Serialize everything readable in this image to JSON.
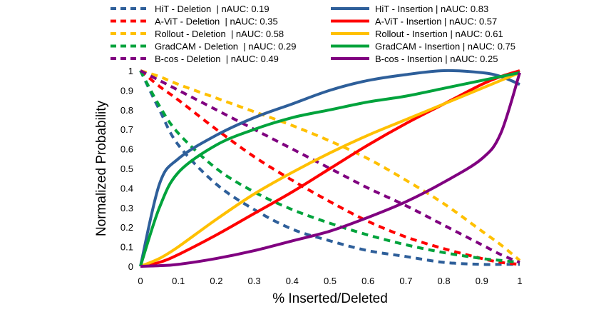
{
  "chart_data": {
    "type": "line",
    "title": "",
    "xlabel": "% Inserted/Deleted",
    "ylabel": "Normalized Probability",
    "xlim": [
      0,
      1
    ],
    "ylim": [
      0,
      1
    ],
    "xticks": [
      "0",
      "0.1",
      "0.2",
      "0.3",
      "0.4",
      "0.5",
      "0.6",
      "0.7",
      "0.8",
      "0.9",
      "1"
    ],
    "yticks": [
      "0",
      "0.1",
      "0.2",
      "0.3",
      "0.4",
      "0.5",
      "0.6",
      "0.7",
      "0.8",
      "0.9",
      "1"
    ],
    "grid": false,
    "legend_placement": "top",
    "x": [
      0,
      0.05,
      0.1,
      0.2,
      0.3,
      0.4,
      0.5,
      0.6,
      0.7,
      0.8,
      0.9,
      0.95,
      1
    ],
    "series": [
      {
        "name": "HiT - Deletion  | nAUC: 0.19",
        "color": "#2e5f9a",
        "dash": true,
        "values": [
          1,
          0.8,
          0.62,
          0.42,
          0.29,
          0.19,
          0.13,
          0.08,
          0.05,
          0.02,
          0.01,
          0.01,
          0.01
        ]
      },
      {
        "name": "A-ViT - Deletion  | nAUC: 0.35",
        "color": "#ff0000",
        "dash": true,
        "values": [
          1,
          0.92,
          0.85,
          0.7,
          0.56,
          0.44,
          0.33,
          0.23,
          0.15,
          0.09,
          0.04,
          0.02,
          0.01
        ]
      },
      {
        "name": "Rollout - Deletion  | nAUC: 0.58",
        "color": "#ffc000",
        "dash": true,
        "values": [
          1,
          0.97,
          0.93,
          0.86,
          0.79,
          0.72,
          0.64,
          0.55,
          0.44,
          0.32,
          0.18,
          0.11,
          0.03
        ]
      },
      {
        "name": "GradCAM - Deletion  | nAUC: 0.29",
        "color": "#00a33c",
        "dash": true,
        "values": [
          1,
          0.82,
          0.68,
          0.5,
          0.38,
          0.29,
          0.22,
          0.16,
          0.11,
          0.07,
          0.04,
          0.03,
          0.02
        ]
      },
      {
        "name": "B-cos - Deletion  | nAUC: 0.49",
        "color": "#800080",
        "dash": true,
        "values": [
          1,
          0.95,
          0.9,
          0.8,
          0.7,
          0.6,
          0.5,
          0.4,
          0.31,
          0.21,
          0.11,
          0.06,
          0.02
        ]
      },
      {
        "name": "HiT - Insertion | nAUC: 0.83",
        "color": "#2e5f9a",
        "dash": false,
        "values": [
          0,
          0.42,
          0.55,
          0.67,
          0.76,
          0.83,
          0.9,
          0.95,
          0.98,
          1.0,
          0.99,
          0.97,
          0.93
        ]
      },
      {
        "name": "A-ViT - Insertion | nAUC: 0.57",
        "color": "#ff0000",
        "dash": false,
        "values": [
          0,
          0.02,
          0.06,
          0.16,
          0.27,
          0.38,
          0.5,
          0.62,
          0.73,
          0.83,
          0.93,
          0.97,
          1
        ]
      },
      {
        "name": "Rollout - Insertion | nAUC: 0.61",
        "color": "#ffc000",
        "dash": false,
        "values": [
          0,
          0.04,
          0.1,
          0.24,
          0.37,
          0.48,
          0.58,
          0.67,
          0.75,
          0.83,
          0.91,
          0.95,
          0.99
        ]
      },
      {
        "name": "GradCAM - Insertion | nAUC: 0.75",
        "color": "#00a33c",
        "dash": false,
        "values": [
          0,
          0.3,
          0.48,
          0.62,
          0.7,
          0.76,
          0.8,
          0.84,
          0.87,
          0.91,
          0.95,
          0.97,
          0.99
        ]
      },
      {
        "name": "B-cos - Insertion | nAUC: 0.25",
        "color": "#800080",
        "dash": false,
        "values": [
          0,
          0.003,
          0.01,
          0.04,
          0.08,
          0.13,
          0.18,
          0.25,
          0.33,
          0.43,
          0.55,
          0.68,
          0.99
        ]
      }
    ]
  }
}
